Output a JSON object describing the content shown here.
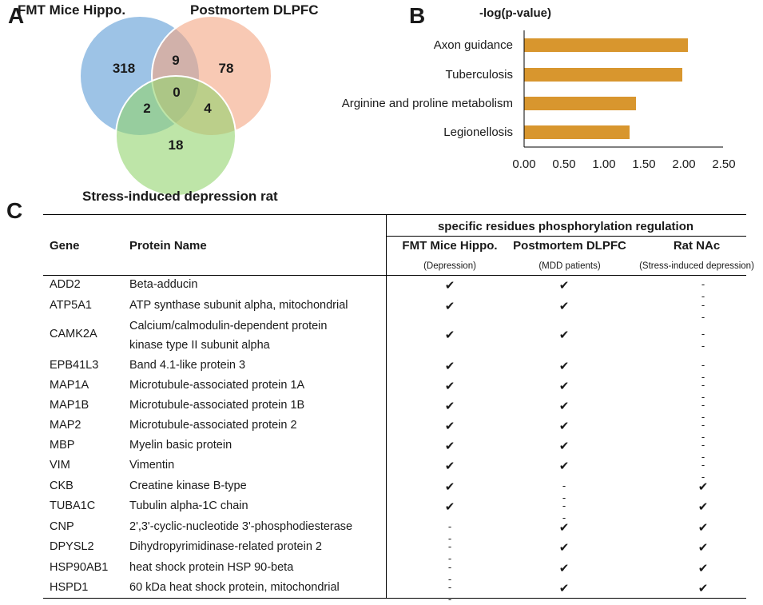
{
  "panels": {
    "a": "A",
    "b": "B",
    "c": "C"
  },
  "venn": {
    "labels": {
      "fmt": "FMT Mice Hippo.",
      "dlpfc": "Postmortem DLPFC",
      "rat": "Stress-induced depression rat"
    },
    "counts": {
      "fmt_only": "318",
      "dlpfc_only": "78",
      "rat_only": "18",
      "fmt_dlpfc": "9",
      "fmt_rat": "2",
      "dlpfc_rat": "4",
      "all": "0"
    },
    "colors": {
      "fmt": "#5b9bd5",
      "dlpfc": "#f4a582",
      "rat": "#92d36e"
    }
  },
  "chart_data": {
    "type": "bar",
    "orientation": "horizontal",
    "title": "-log(p-value)",
    "categories": [
      "Axon guidance",
      "Tuberculosis",
      "Arginine and proline metabolism",
      "Legionellosis"
    ],
    "values": [
      2.05,
      1.98,
      1.4,
      1.32
    ],
    "xlim": [
      0,
      2.5
    ],
    "xticks": [
      "0.00",
      "0.50",
      "1.00",
      "1.50",
      "2.00",
      "2.50"
    ],
    "bar_color": "#d8962e"
  },
  "table": {
    "group_header": "specific residues phosphorylation regulation",
    "headers": {
      "gene": "Gene",
      "protein": "Protein Name",
      "c1": "FMT Mice Hippo.",
      "c2": "Postmortem DLPFC",
      "c3": "Rat NAc"
    },
    "subheaders": {
      "c1": "(Depression)",
      "c2": "(MDD patients)",
      "c3": "(Stress-induced depression)"
    },
    "rows": [
      {
        "gene": "ADD2",
        "protein": [
          "Beta-adducin"
        ],
        "c1": "✔",
        "c2": "✔",
        "c3": "--"
      },
      {
        "gene": "ATP5A1",
        "protein": [
          "ATP synthase subunit alpha, mitochondrial"
        ],
        "c1": "✔",
        "c2": "✔",
        "c3": "--"
      },
      {
        "gene": "CAMK2A",
        "protein": [
          "Calcium/calmodulin-dependent protein",
          "kinase type II subunit alpha"
        ],
        "c1": "✔",
        "c2": "✔",
        "c3": "--"
      },
      {
        "gene": "EPB41L3",
        "protein": [
          "Band 4.1-like protein 3"
        ],
        "c1": "✔",
        "c2": "✔",
        "c3": "--"
      },
      {
        "gene": "MAP1A",
        "protein": [
          "Microtubule-associated protein 1A"
        ],
        "c1": "✔",
        "c2": "✔",
        "c3": "--"
      },
      {
        "gene": "MAP1B",
        "protein": [
          "Microtubule-associated protein 1B"
        ],
        "c1": "✔",
        "c2": "✔",
        "c3": "--"
      },
      {
        "gene": "MAP2",
        "protein": [
          "Microtubule-associated protein 2"
        ],
        "c1": "✔",
        "c2": "✔",
        "c3": "--"
      },
      {
        "gene": "MBP",
        "protein": [
          "Myelin basic protein"
        ],
        "c1": "✔",
        "c2": "✔",
        "c3": "--"
      },
      {
        "gene": "VIM",
        "protein": [
          "Vimentin"
        ],
        "c1": "✔",
        "c2": "✔",
        "c3": "--"
      },
      {
        "gene": "CKB",
        "protein": [
          "Creatine kinase B-type"
        ],
        "c1": "✔",
        "c2": "--",
        "c3": "✔"
      },
      {
        "gene": "TUBA1C",
        "protein": [
          "Tubulin alpha-1C chain"
        ],
        "c1": "✔",
        "c2": "--",
        "c3": "✔"
      },
      {
        "gene": "CNP",
        "protein": [
          "2',3'-cyclic-nucleotide 3'-phosphodiesterase"
        ],
        "c1": "--",
        "c2": "✔",
        "c3": "✔"
      },
      {
        "gene": "DPYSL2",
        "protein": [
          "Dihydropyrimidinase-related protein 2"
        ],
        "c1": "--",
        "c2": "✔",
        "c3": "✔"
      },
      {
        "gene": "HSP90AB1",
        "protein": [
          "heat shock protein HSP 90-beta"
        ],
        "c1": "--",
        "c2": "✔",
        "c3": "✔"
      },
      {
        "gene": "HSPD1",
        "protein": [
          "60 kDa heat shock protein, mitochondrial"
        ],
        "c1": "--",
        "c2": "✔",
        "c3": "✔"
      }
    ]
  }
}
